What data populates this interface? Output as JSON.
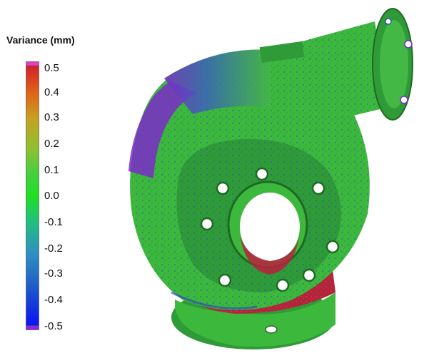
{
  "legend": {
    "title": "Variance (mm)",
    "ticks": [
      "0.5",
      "0.4",
      "0.3",
      "0.2",
      "0.1",
      "0.0",
      "-0.1",
      "-0.2",
      "-0.3",
      "-0.4",
      "-0.5"
    ],
    "range": [
      -0.5,
      0.5
    ],
    "top_cap_color": "#e040c0",
    "bottom_cap_color": "#8a2be2",
    "gradient_colors": [
      "#d0202a",
      "#e06018",
      "#c8a020",
      "#90c030",
      "#40d040",
      "#20e020",
      "#20c080",
      "#3090c0",
      "#2060c8",
      "#1030e0",
      "#1010ff"
    ]
  },
  "model": {
    "subject": "3D scan deviation map of pump volute housing",
    "surface_colors": {
      "in_tolerance": "#3cb83c",
      "negative_deviation": "#2a3cc8",
      "strong_negative": "#7a2cc8",
      "positive_deviation": "#b8203c"
    }
  }
}
